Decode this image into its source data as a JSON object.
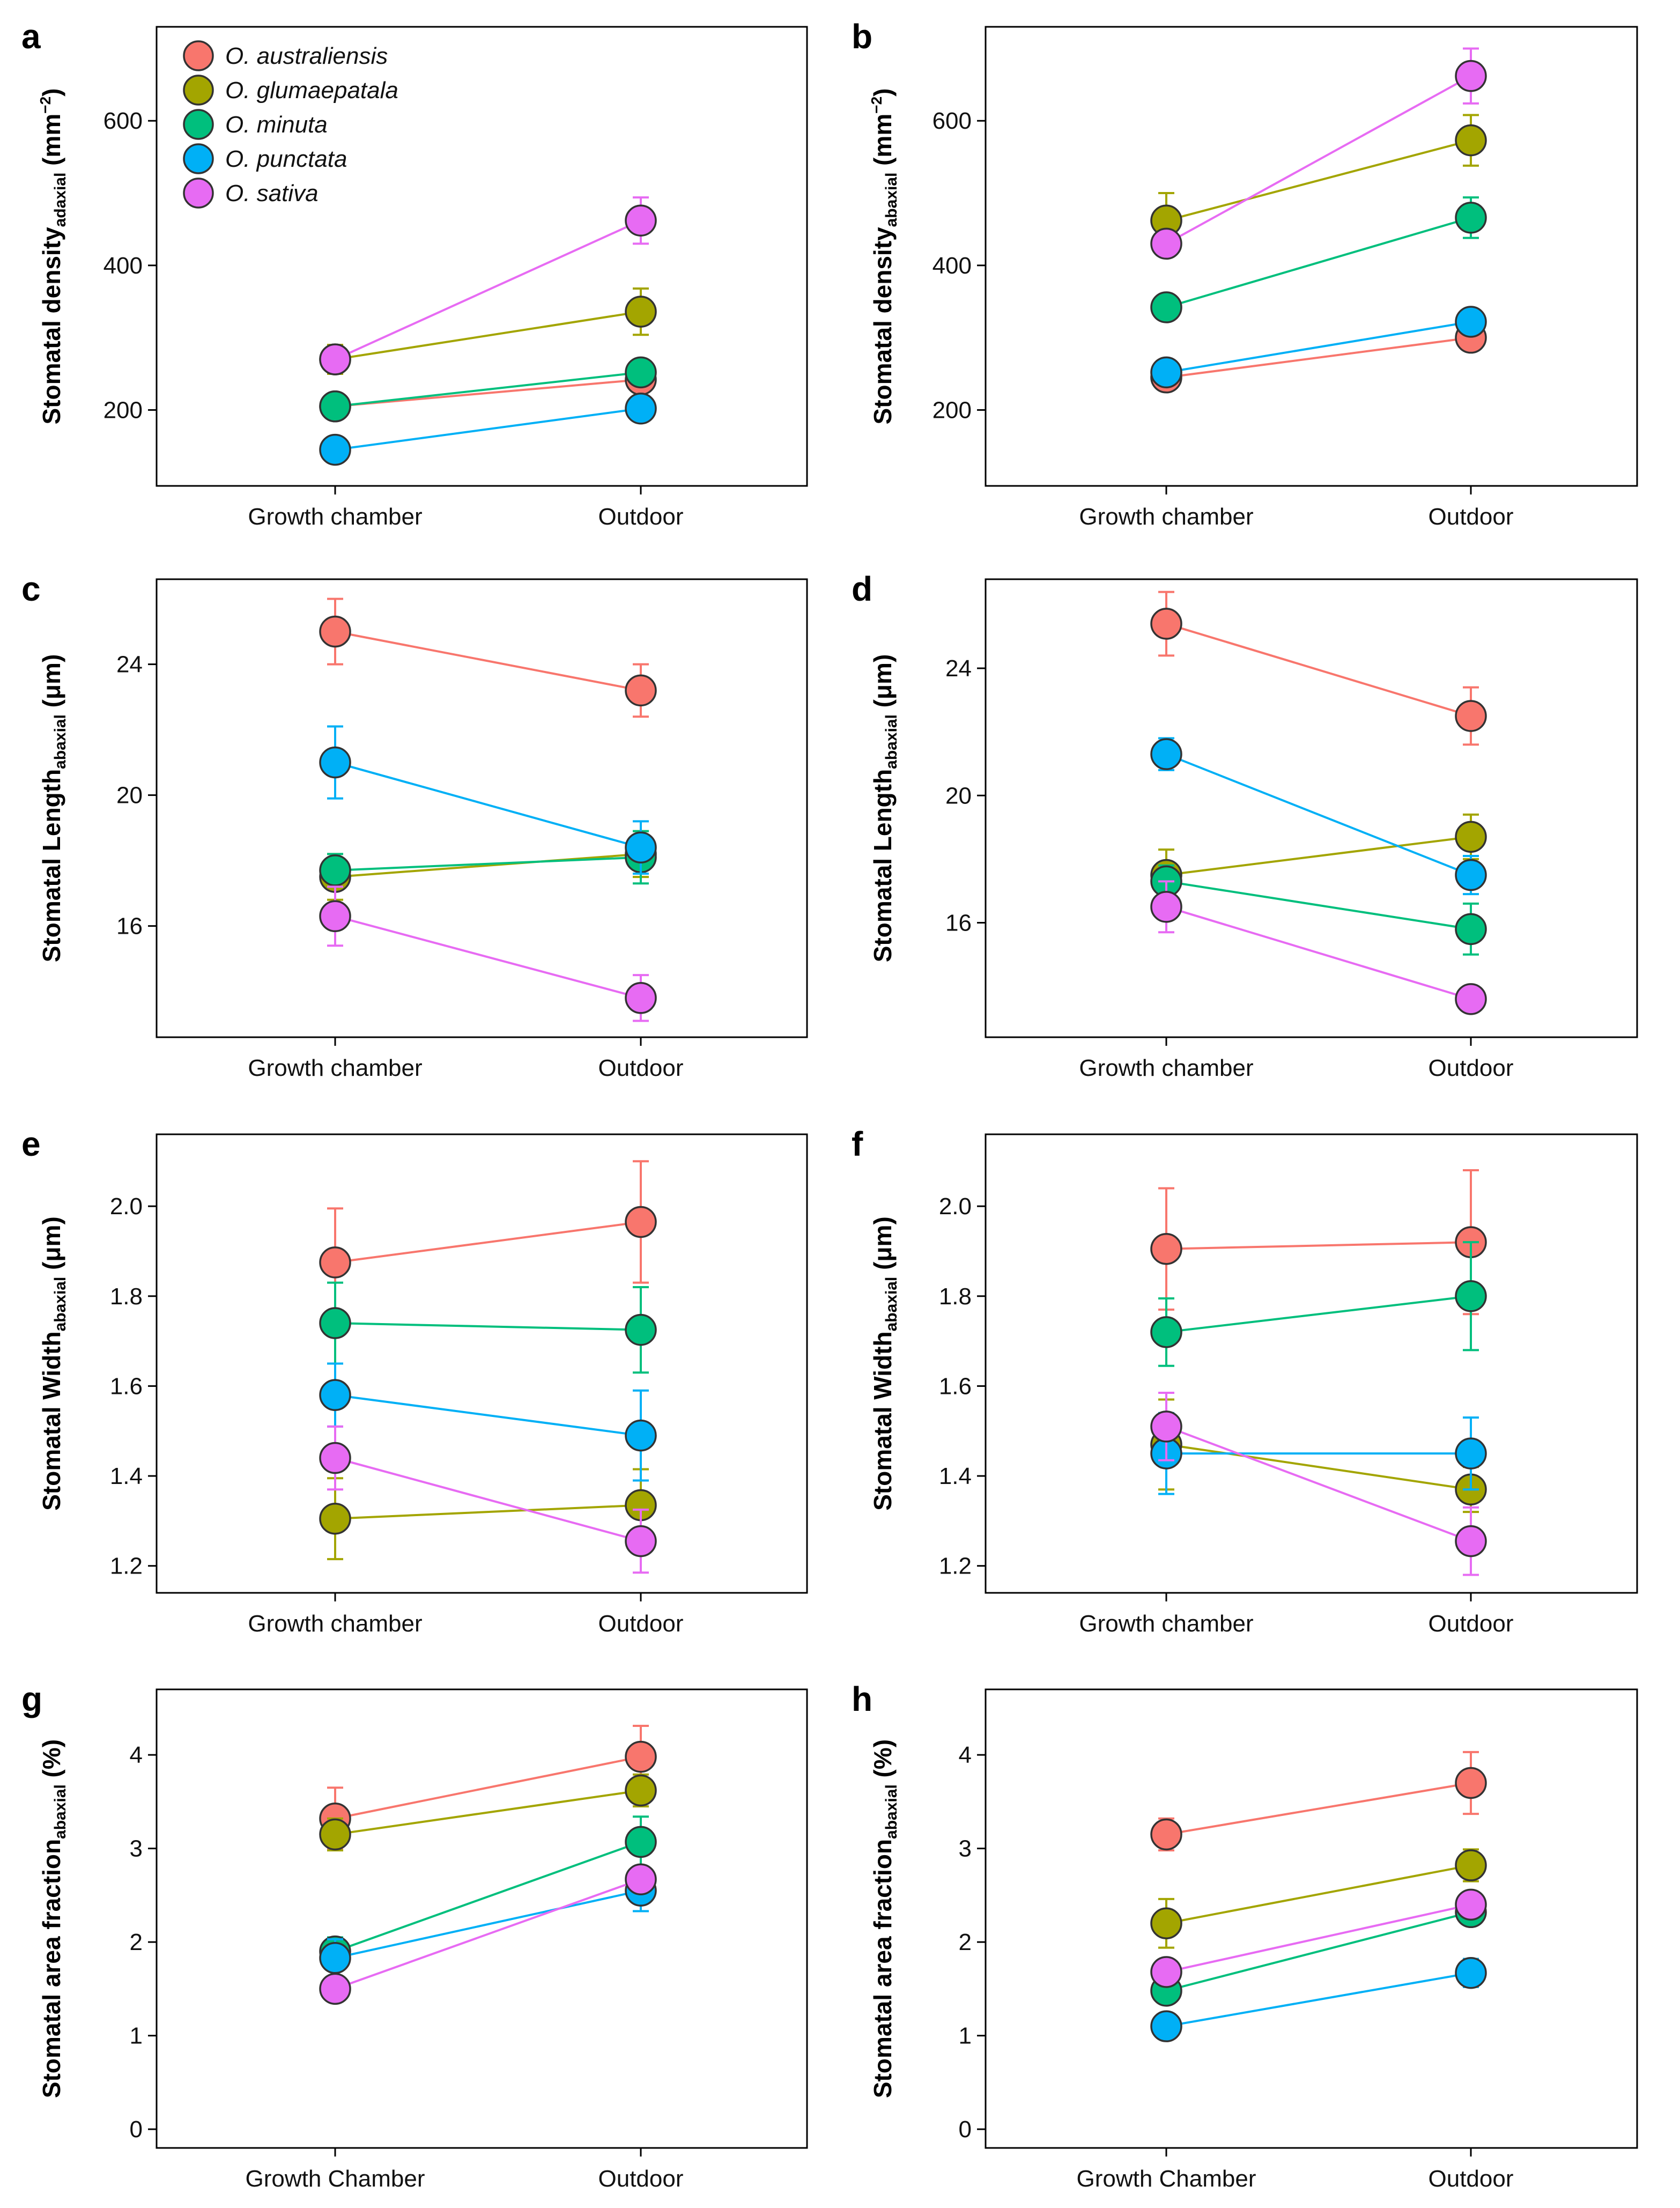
{
  "chart_data": [
    {
      "panel": "a",
      "type": "line",
      "categories": [
        "Growth chamber",
        "Outdoor"
      ],
      "ylabel": "Stomatal density",
      "ylabel_sub": "adaxial",
      "ylabel_unit_open": " (mm",
      "ylabel_sup": "−2",
      "ylabel_unit_close": ")",
      "ylim": [
        95,
        730
      ],
      "yticks": [
        200,
        400,
        600
      ],
      "series": [
        {
          "name": "O. australiensis",
          "values": [
            205,
            242
          ],
          "errors": [
            12,
            12
          ]
        },
        {
          "name": "O. glumaepatala",
          "values": [
            270,
            336
          ],
          "errors": [
            20,
            32
          ]
        },
        {
          "name": "O. minuta",
          "values": [
            205,
            252
          ],
          "errors": [
            12,
            12
          ]
        },
        {
          "name": "O. punctata",
          "values": [
            145,
            202
          ],
          "errors": [
            10,
            10
          ]
        },
        {
          "name": "O. sativa",
          "values": [
            270,
            462
          ],
          "errors": [
            15,
            32
          ]
        }
      ]
    },
    {
      "panel": "b",
      "type": "line",
      "categories": [
        "Growth chamber",
        "Outdoor"
      ],
      "ylabel": "Stomatal density",
      "ylabel_sub": "abaxial",
      "ylabel_unit_open": " (mm",
      "ylabel_sup": "−2",
      "ylabel_unit_close": ")",
      "ylim": [
        95,
        730
      ],
      "yticks": [
        200,
        400,
        600
      ],
      "series": [
        {
          "name": "O. australiensis",
          "values": [
            245,
            300
          ],
          "errors": [
            10,
            15
          ]
        },
        {
          "name": "O. glumaepatala",
          "values": [
            462,
            573
          ],
          "errors": [
            38,
            35
          ]
        },
        {
          "name": "O. minuta",
          "values": [
            342,
            466
          ],
          "errors": [
            12,
            28
          ]
        },
        {
          "name": "O. punctata",
          "values": [
            252,
            322
          ],
          "errors": [
            12,
            12
          ]
        },
        {
          "name": "O. sativa",
          "values": [
            430,
            662
          ],
          "errors": [
            12,
            38
          ]
        }
      ]
    },
    {
      "panel": "c",
      "type": "line",
      "categories": [
        "Growth chamber",
        "Outdoor"
      ],
      "ylabel": "Stomatal Length",
      "ylabel_sub": "abaxial",
      "ylabel_unit_open": " (μm)",
      "ylabel_sup": "",
      "ylabel_unit_close": "",
      "ylim": [
        12.6,
        26.6
      ],
      "yticks": [
        16,
        20,
        24
      ],
      "series": [
        {
          "name": "O. australiensis",
          "values": [
            25.0,
            23.2
          ],
          "errors": [
            1.0,
            0.8
          ]
        },
        {
          "name": "O. glumaepatala",
          "values": [
            17.5,
            18.2
          ],
          "errors": [
            0.7,
            0.7
          ]
        },
        {
          "name": "O. minuta",
          "values": [
            17.7,
            18.1
          ],
          "errors": [
            0.5,
            0.8
          ]
        },
        {
          "name": "O. punctata",
          "values": [
            21.0,
            18.4
          ],
          "errors": [
            1.1,
            0.8
          ]
        },
        {
          "name": "O. sativa",
          "values": [
            16.3,
            13.8
          ],
          "errors": [
            0.9,
            0.7
          ]
        }
      ]
    },
    {
      "panel": "d",
      "type": "line",
      "categories": [
        "Growth chamber",
        "Outdoor"
      ],
      "ylabel": "Stomatal Length",
      "ylabel_sub": "abaxial",
      "ylabel_unit_open": " (μm)",
      "ylabel_sup": "",
      "ylabel_unit_close": "",
      "ylim": [
        12.4,
        26.8
      ],
      "yticks": [
        16,
        20,
        24
      ],
      "series": [
        {
          "name": "O. australiensis",
          "values": [
            25.4,
            22.5
          ],
          "errors": [
            1.0,
            0.9
          ]
        },
        {
          "name": "O. glumaepatala",
          "values": [
            17.5,
            18.7
          ],
          "errors": [
            0.8,
            0.7
          ]
        },
        {
          "name": "O. minuta",
          "values": [
            17.3,
            15.8
          ],
          "errors": [
            0.5,
            0.8
          ]
        },
        {
          "name": "O. punctata",
          "values": [
            21.3,
            17.5
          ],
          "errors": [
            0.5,
            0.6
          ]
        },
        {
          "name": "O. sativa",
          "values": [
            16.5,
            13.6
          ],
          "errors": [
            0.8,
            0.3
          ]
        }
      ]
    },
    {
      "panel": "e",
      "type": "line",
      "categories": [
        "Growth chamber",
        "Outdoor"
      ],
      "ylabel": "Stomatal Width",
      "ylabel_sub": "abaxial",
      "ylabel_unit_open": " (μm)",
      "ylabel_sup": "",
      "ylabel_unit_close": "",
      "ylim": [
        1.14,
        2.16
      ],
      "yticks": [
        1.2,
        1.4,
        1.6,
        1.8,
        2.0
      ],
      "yticklabels": [
        "1.2",
        "1.4",
        "1.6",
        "1.8",
        "2.0"
      ],
      "series": [
        {
          "name": "O. australiensis",
          "values": [
            1.875,
            1.965
          ],
          "errors": [
            0.12,
            0.135
          ]
        },
        {
          "name": "O. glumaepatala",
          "values": [
            1.305,
            1.335
          ],
          "errors": [
            0.09,
            0.08
          ]
        },
        {
          "name": "O. minuta",
          "values": [
            1.74,
            1.725
          ],
          "errors": [
            0.09,
            0.095
          ]
        },
        {
          "name": "O. punctata",
          "values": [
            1.58,
            1.49
          ],
          "errors": [
            0.07,
            0.1
          ]
        },
        {
          "name": "O. sativa",
          "values": [
            1.44,
            1.255
          ],
          "errors": [
            0.07,
            0.07
          ]
        }
      ]
    },
    {
      "panel": "f",
      "type": "line",
      "categories": [
        "Growth chamber",
        "Outdoor"
      ],
      "ylabel": "Stomatal Width",
      "ylabel_sub": "abaxial",
      "ylabel_unit_open": " (μm)",
      "ylabel_sup": "",
      "ylabel_unit_close": "",
      "ylim": [
        1.14,
        2.16
      ],
      "yticks": [
        1.2,
        1.4,
        1.6,
        1.8,
        2.0
      ],
      "yticklabels": [
        "1.2",
        "1.4",
        "1.6",
        "1.8",
        "2.0"
      ],
      "series": [
        {
          "name": "O. australiensis",
          "values": [
            1.905,
            1.92
          ],
          "errors": [
            0.135,
            0.16
          ]
        },
        {
          "name": "O. glumaepatala",
          "values": [
            1.47,
            1.37
          ],
          "errors": [
            0.1,
            0.05
          ]
        },
        {
          "name": "O. minuta",
          "values": [
            1.72,
            1.8
          ],
          "errors": [
            0.075,
            0.12
          ]
        },
        {
          "name": "O. punctata",
          "values": [
            1.45,
            1.45
          ],
          "errors": [
            0.09,
            0.08
          ]
        },
        {
          "name": "O. sativa",
          "values": [
            1.51,
            1.255
          ],
          "errors": [
            0.075,
            0.075
          ]
        }
      ]
    },
    {
      "panel": "g",
      "type": "line",
      "categories": [
        "Growth Chamber",
        "Outdoor"
      ],
      "ylabel": "Stomatal area fraction",
      "ylabel_sub": "abaxial",
      "ylabel_unit_open": " (%)",
      "ylabel_sup": "",
      "ylabel_unit_close": "",
      "ylim": [
        -0.2,
        4.7
      ],
      "yticks": [
        0,
        1,
        2,
        3,
        4
      ],
      "series": [
        {
          "name": "O. australiensis",
          "values": [
            3.32,
            3.98
          ],
          "errors": [
            0.33,
            0.33
          ]
        },
        {
          "name": "O. glumaepatala",
          "values": [
            3.15,
            3.62
          ],
          "errors": [
            0.17,
            0.17
          ]
        },
        {
          "name": "O. minuta",
          "values": [
            1.9,
            3.07
          ],
          "errors": [
            0.15,
            0.27
          ]
        },
        {
          "name": "O. punctata",
          "values": [
            1.83,
            2.55
          ],
          "errors": [
            0.2,
            0.22
          ]
        },
        {
          "name": "O. sativa",
          "values": [
            1.5,
            2.67
          ],
          "errors": [
            0.1,
            0.12
          ]
        }
      ]
    },
    {
      "panel": "h",
      "type": "line",
      "categories": [
        "Growth Chamber",
        "Outdoor"
      ],
      "ylabel": "Stomatal area fraction",
      "ylabel_sub": "abaxial",
      "ylabel_unit_open": " (%)",
      "ylabel_sup": "",
      "ylabel_unit_close": "",
      "ylim": [
        -0.2,
        4.7
      ],
      "yticks": [
        0,
        1,
        2,
        3,
        4
      ],
      "series": [
        {
          "name": "O. australiensis",
          "values": [
            3.15,
            3.7
          ],
          "errors": [
            0.17,
            0.33
          ]
        },
        {
          "name": "O. glumaepatala",
          "values": [
            2.2,
            2.82
          ],
          "errors": [
            0.26,
            0.17
          ]
        },
        {
          "name": "O. minuta",
          "values": [
            1.48,
            2.32
          ],
          "errors": [
            0.1,
            0.1
          ]
        },
        {
          "name": "O. punctata",
          "values": [
            1.1,
            1.67
          ],
          "errors": [
            0.1,
            0.15
          ]
        },
        {
          "name": "O. sativa",
          "values": [
            1.68,
            2.4
          ],
          "errors": [
            0.1,
            0.12
          ]
        }
      ]
    }
  ],
  "legend": {
    "placement": "top-left of panel a",
    "items": [
      "O. australiensis",
      "O. glumaepatala",
      "O. minuta",
      "O. punctata",
      "O. sativa"
    ]
  },
  "series_colors": {
    "O. australiensis": "#F8766D",
    "O. glumaepatala": "#A3A500",
    "O. minuta": "#00BF7D",
    "O. punctata": "#00B0F6",
    "O. sativa": "#E76BF3"
  }
}
